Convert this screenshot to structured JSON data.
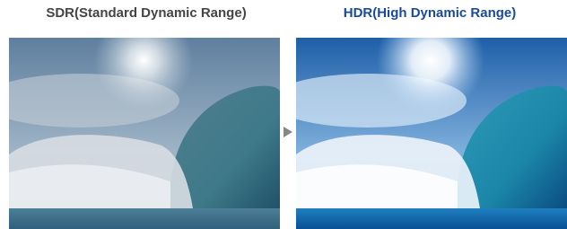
{
  "left": {
    "title": "SDR(Standard Dynamic Range)"
  },
  "right": {
    "title": "HDR(High Dynamic Range)"
  }
}
